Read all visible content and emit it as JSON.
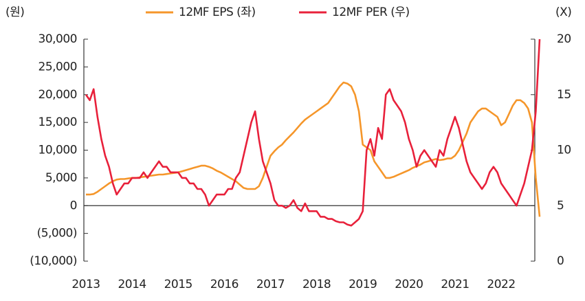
{
  "chart_data": {
    "type": "line",
    "y_unit": "(원)",
    "y2_unit": "(X)",
    "categories": [
      "2013",
      null,
      null,
      null,
      null,
      null,
      null,
      null,
      null,
      null,
      null,
      null,
      "2014",
      null,
      null,
      null,
      null,
      null,
      null,
      null,
      null,
      null,
      null,
      null,
      "2015",
      null,
      null,
      null,
      null,
      null,
      null,
      null,
      null,
      null,
      null,
      null,
      "2016",
      null,
      null,
      null,
      null,
      null,
      null,
      null,
      null,
      null,
      null,
      null,
      "2017",
      null,
      null,
      null,
      null,
      null,
      null,
      null,
      null,
      null,
      null,
      null,
      "2018",
      null,
      null,
      null,
      null,
      null,
      null,
      null,
      null,
      null,
      null,
      null,
      "2019",
      null,
      null,
      null,
      null,
      null,
      null,
      null,
      null,
      null,
      null,
      null,
      "2020",
      null,
      null,
      null,
      null,
      null,
      null,
      null,
      null,
      null,
      null,
      null,
      "2021",
      null,
      null,
      null,
      null,
      null,
      null,
      null,
      null,
      null,
      null,
      null,
      "2022",
      null,
      null,
      null,
      null,
      null,
      null,
      null,
      null,
      null,
      null
    ],
    "series": [
      {
        "name": "12MF EPS (좌)",
        "color": "#f5962a",
        "axis": "y",
        "values": [
          2000,
          2000,
          2100,
          2500,
          3000,
          3500,
          4000,
          4400,
          4700,
          4800,
          4800,
          4900,
          5000,
          5000,
          5100,
          5200,
          5300,
          5400,
          5500,
          5600,
          5600,
          5700,
          5800,
          5900,
          6000,
          6200,
          6400,
          6600,
          6800,
          7000,
          7200,
          7200,
          7000,
          6700,
          6300,
          6000,
          5600,
          5200,
          4800,
          4400,
          3800,
          3200,
          3000,
          3000,
          3000,
          3500,
          5000,
          7000,
          9000,
          9800,
          10500,
          11000,
          11800,
          12500,
          13200,
          14000,
          14800,
          15500,
          16000,
          16500,
          17000,
          17500,
          18000,
          18500,
          19500,
          20500,
          21500,
          22200,
          22000,
          21500,
          20000,
          17000,
          11000,
          10500,
          10000,
          8000,
          7000,
          6000,
          5000,
          5000,
          5200,
          5500,
          5800,
          6100,
          6400,
          6800,
          7100,
          7400,
          7800,
          8000,
          8200,
          8400,
          8200,
          8300,
          8500,
          8500,
          9000,
          10000,
          11500,
          13000,
          15000,
          16000,
          17000,
          17500,
          17500,
          17000,
          16500,
          16000,
          14500,
          15000,
          16500,
          18000,
          19000,
          19000,
          18500,
          17500,
          15000,
          5000,
          -2000
        ]
      },
      {
        "name": "12MF PER (우)",
        "color": "#e8203a",
        "axis": "y2",
        "values": [
          15,
          14.5,
          15.5,
          13,
          11,
          9.5,
          8.5,
          7,
          6,
          6.5,
          7,
          7,
          7.5,
          7.5,
          7.5,
          8,
          7.5,
          8,
          8.5,
          9,
          8.5,
          8.5,
          8,
          8,
          8,
          7.5,
          7.5,
          7,
          7,
          6.5,
          6.5,
          6,
          5,
          5.5,
          6,
          6,
          6,
          6.5,
          6.5,
          7.5,
          8,
          9.5,
          11,
          12.5,
          13.5,
          11,
          9,
          8,
          7,
          5.5,
          5,
          5,
          4.8,
          5,
          5.5,
          4.8,
          4.5,
          5.2,
          4.5,
          4.5,
          4.5,
          4,
          4,
          3.8,
          3.8,
          3.6,
          3.5,
          3.5,
          3.3,
          3.2,
          3.5,
          3.8,
          4.5,
          10,
          11,
          9.5,
          12,
          11,
          15,
          15.5,
          14.5,
          14,
          13.5,
          12.5,
          11,
          10,
          8.5,
          9.5,
          10,
          9.5,
          9,
          8.5,
          10,
          9.5,
          11,
          12,
          13,
          12,
          10.5,
          9,
          8,
          7.5,
          7,
          6.5,
          7,
          8,
          8.5,
          8,
          7,
          6.5,
          6,
          5.5,
          5,
          6,
          7,
          8.5,
          10,
          13.5,
          20
        ]
      }
    ],
    "ylim": [
      -10000,
      30000
    ],
    "yticks": [
      {
        "value": -10000,
        "label": "(10,000)"
      },
      {
        "value": -5000,
        "label": "(5,000)"
      },
      0,
      {
        "value": 5000,
        "label": "5,000"
      },
      {
        "value": 10000,
        "label": "10,000"
      },
      {
        "value": 15000,
        "label": "15,000"
      },
      {
        "value": 20000,
        "label": "20,000"
      },
      {
        "value": 25000,
        "label": "25,000"
      },
      {
        "value": 30000,
        "label": "30,000"
      }
    ],
    "y2lim": [
      0,
      20
    ],
    "y2ticks": [
      0,
      5,
      10,
      15,
      20
    ],
    "legend": "top"
  }
}
